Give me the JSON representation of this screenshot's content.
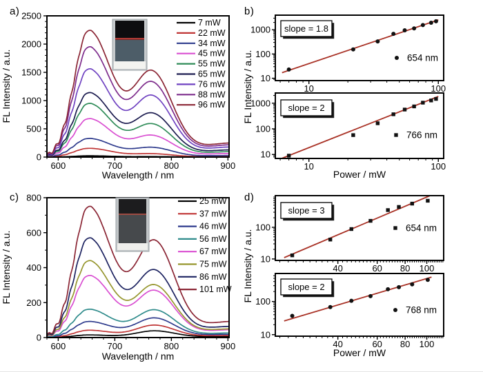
{
  "figure": {
    "background": "#ffffff",
    "edge_color": "#d4d4d4",
    "axis_color": "#000000",
    "text_color": "#000000",
    "fit_line_color": "#a93226",
    "marker_color": "#111111"
  },
  "chart_data": [
    {
      "id": "a",
      "type": "line",
      "panel_label": "a)",
      "xlabel": "Wavelength / nm",
      "ylabel": "FL Intensity / a.u.",
      "xlim": [
        580,
        902
      ],
      "ylim": [
        0,
        2500
      ],
      "xticks": [
        600,
        700,
        800,
        900
      ],
      "yticks": [
        0,
        500,
        1000,
        1500,
        2000,
        2500
      ],
      "x_minor_step": 20,
      "y_minor_step": 100,
      "grid": false,
      "legend_position": "top-right",
      "peak_wavelengths_nm": [
        654,
        766
      ],
      "series": [
        {
          "label": "7 mW",
          "color": "#000000",
          "peak_intensities": [
            23,
            9
          ]
        },
        {
          "label": "22 mW",
          "color": "#bf3434",
          "peak_intensities": [
            155,
            57
          ]
        },
        {
          "label": "34 mW",
          "color": "#2d3a8c",
          "peak_intensities": [
            330,
            165
          ]
        },
        {
          "label": "45 mW",
          "color": "#d94ed1",
          "peak_intensities": [
            680,
            370
          ]
        },
        {
          "label": "55 mW",
          "color": "#2e8b57",
          "peak_intensities": [
            950,
            565
          ]
        },
        {
          "label": "65 mW",
          "color": "#1a1a4e",
          "peak_intensities": [
            1140,
            750
          ]
        },
        {
          "label": "76 mW",
          "color": "#6f42c1",
          "peak_intensities": [
            1560,
            1050
          ]
        },
        {
          "label": "88 mW",
          "color": "#7d2b8b",
          "peak_intensities": [
            1950,
            1280
          ]
        },
        {
          "label": "96 mW",
          "color": "#8a2433",
          "peak_intensities": [
            2240,
            1470
          ]
        }
      ],
      "inset": {
        "type": "photo",
        "description": "cuvette with red laser beam"
      }
    },
    {
      "id": "b",
      "type": "scatter",
      "panel_label": "b)",
      "xlabel": "Power / mW",
      "ylabel": "FL Intensity / a.u.",
      "xscale": "log",
      "yscale": "log",
      "subplots": [
        {
          "annotation": "slope = 1.8",
          "legend": "654 nm",
          "marker": "circle",
          "x": [
            7,
            22,
            34,
            45,
            55,
            65,
            76,
            88,
            96
          ],
          "y": [
            23,
            155,
            330,
            680,
            950,
            1140,
            1560,
            1950,
            2240
          ],
          "xlim": [
            5.5,
            110
          ],
          "ylim": [
            8,
            4000
          ],
          "xticks": [
            10,
            100
          ],
          "yticks": [
            10,
            100,
            1000
          ],
          "fit_line": {
            "x": [
              6.2,
              100
            ],
            "y": [
              17,
              2550
            ]
          },
          "show_xlabel": false
        },
        {
          "annotation": "slope = 2",
          "legend": "766 nm",
          "marker": "square",
          "x": [
            7,
            22,
            34,
            45,
            55,
            65,
            76,
            88,
            96
          ],
          "y": [
            9,
            57,
            165,
            370,
            565,
            750,
            1050,
            1280,
            1470
          ],
          "xlim": [
            5.5,
            110
          ],
          "ylim": [
            7,
            2500
          ],
          "xticks": [
            10,
            100
          ],
          "yticks": [
            10,
            100,
            1000
          ],
          "fit_line": {
            "x": [
              6.2,
              100
            ],
            "y": [
              7.1,
              1837
            ]
          },
          "show_xlabel": true
        }
      ]
    },
    {
      "id": "c",
      "type": "line",
      "panel_label": "c)",
      "xlabel": "Wavelength / nm",
      "ylabel": "FL Intensity / a.u.",
      "xlim": [
        580,
        902
      ],
      "ylim": [
        0,
        800
      ],
      "xticks": [
        600,
        700,
        800,
        900
      ],
      "yticks": [
        0,
        200,
        400,
        600,
        800
      ],
      "x_minor_step": 20,
      "y_minor_step": 100,
      "grid": false,
      "legend_position": "top-right",
      "peak_wavelengths_nm": [
        654,
        770
      ],
      "series": [
        {
          "label": "25 mW",
          "color": "#000000",
          "peak_intensities": [
            15,
            38
          ]
        },
        {
          "label": "37 mW",
          "color": "#bf3434",
          "peak_intensities": [
            42,
            70
          ]
        },
        {
          "label": "46 mW",
          "color": "#2d3a8c",
          "peak_intensities": [
            92,
            110
          ]
        },
        {
          "label": "56 mW",
          "color": "#2e8b8b",
          "peak_intensities": [
            162,
            155
          ]
        },
        {
          "label": "67 mW",
          "color": "#d94ed1",
          "peak_intensities": [
            355,
            262
          ]
        },
        {
          "label": "75 mW",
          "color": "#96962e",
          "peak_intensities": [
            440,
            292
          ]
        },
        {
          "label": "86 mW",
          "color": "#1c2260",
          "peak_intensities": [
            570,
            375
          ]
        },
        {
          "label": "101 mW",
          "color": "#8a2433",
          "peak_intensities": [
            750,
            540
          ]
        }
      ],
      "inset": {
        "type": "photo",
        "description": "cuvette with faint red laser beam"
      }
    },
    {
      "id": "d",
      "type": "scatter",
      "panel_label": "d)",
      "xlabel": "Power / mW",
      "ylabel": "FL Intensity / a.u.",
      "xscale": "log",
      "yscale": "log",
      "subplots": [
        {
          "annotation": "slope = 3",
          "legend": "654 nm",
          "marker": "square",
          "x": [
            25,
            37,
            46,
            56,
            67,
            75,
            86,
            101
          ],
          "y": [
            13,
            41,
            88,
            160,
            350,
            440,
            560,
            690
          ],
          "xlim": [
            21,
            119
          ],
          "ylim": [
            9,
            1000
          ],
          "xticks": [
            40,
            60,
            80,
            100
          ],
          "yticks": [
            10,
            100
          ],
          "fit_line": {
            "x": [
              23,
              103
            ],
            "y": [
              11,
              988
            ]
          },
          "show_xlabel": false
        },
        {
          "annotation": "slope = 2",
          "legend": "768 nm",
          "marker": "circle",
          "x": [
            25,
            37,
            46,
            56,
            67,
            75,
            86,
            101
          ],
          "y": [
            37,
            68,
            105,
            145,
            235,
            270,
            330,
            450
          ],
          "xlim": [
            21,
            119
          ],
          "ylim": [
            9,
            700
          ],
          "xticks": [
            40,
            60,
            80,
            100
          ],
          "yticks": [
            10,
            100
          ],
          "fit_line": {
            "x": [
              23,
              105
            ],
            "y": [
              26,
              545
            ]
          },
          "show_xlabel": true
        }
      ]
    }
  ]
}
